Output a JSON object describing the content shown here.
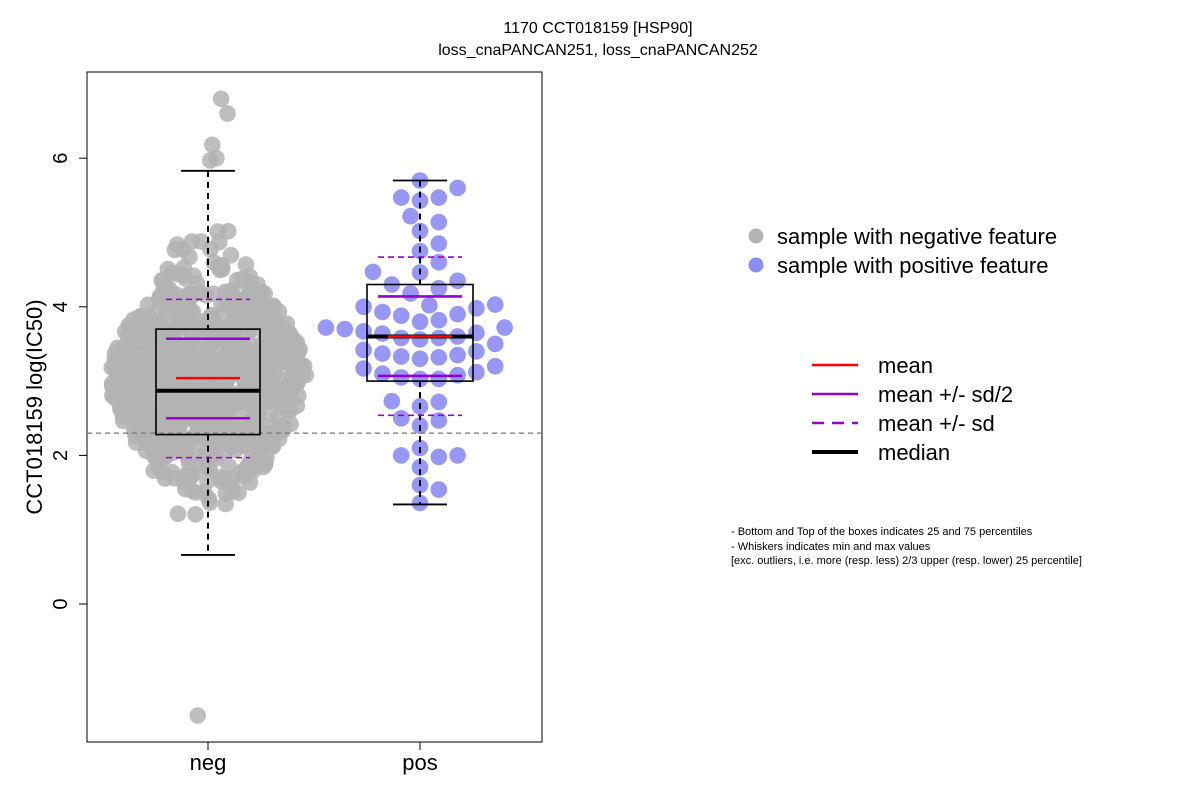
{
  "chart_data": {
    "type": "scatter",
    "subtype": "beeswarm-boxplot",
    "title": "1170 CCT018159 [HSP90]",
    "subtitle": "loss_cnaPANCAN251, loss_cnaPANCAN252",
    "ylabel": "CCT018159 log(IC50)",
    "xlabel": "",
    "categories": [
      "neg",
      "pos"
    ],
    "ylim": [
      -1.85,
      7.1
    ],
    "yticks": [
      0,
      2,
      4,
      6
    ],
    "reference_line": 2.3,
    "grid": false,
    "legend_position": "right",
    "groups": [
      {
        "name": "neg",
        "color": "#b3b3b3",
        "box": {
          "whisker_low": 0.66,
          "q1": 2.28,
          "median": 2.87,
          "q3": 3.7,
          "whisker_high": 5.83
        },
        "mean": 3.04,
        "mean_plus_half_sd": 3.57,
        "mean_minus_half_sd": 2.5,
        "mean_plus_sd": 4.1,
        "mean_minus_sd": 1.97,
        "outliers": [
          6.8,
          6.6,
          6.18,
          6.0,
          5.97,
          -1.5
        ],
        "sample_count": 800
      },
      {
        "name": "pos",
        "color": "#8c8cf5",
        "box": {
          "whisker_low": 1.34,
          "q1": 3.0,
          "median": 3.6,
          "q3": 4.3,
          "whisker_high": 5.7
        },
        "mean": 3.6,
        "mean_plus_half_sd": 4.14,
        "mean_minus_half_sd": 3.07,
        "mean_plus_sd": 4.67,
        "mean_minus_sd": 2.54,
        "points": [
          5.7,
          5.6,
          5.47,
          5.47,
          5.43,
          5.22,
          5.14,
          5.02,
          4.85,
          4.75,
          4.6,
          4.47,
          4.46,
          4.35,
          4.3,
          4.25,
          4.18,
          4.03,
          4.02,
          4.0,
          3.98,
          3.93,
          3.9,
          3.88,
          3.82,
          3.8,
          3.72,
          3.72,
          3.7,
          3.67,
          3.65,
          3.64,
          3.6,
          3.58,
          3.58,
          3.56,
          3.5,
          3.42,
          3.4,
          3.37,
          3.35,
          3.33,
          3.32,
          3.3,
          3.2,
          3.17,
          3.12,
          3.1,
          3.08,
          3.05,
          3.03,
          3.03,
          2.73,
          2.72,
          2.66,
          2.5,
          2.47,
          2.4,
          2.1,
          2.0,
          2.0,
          1.98,
          1.84,
          1.6,
          1.54,
          1.36
        ]
      }
    ],
    "legend_points": [
      {
        "label": "sample with negative feature",
        "color": "#b3b3b3"
      },
      {
        "label": "sample with positive feature",
        "color": "#8c8cf5"
      }
    ],
    "legend_lines": [
      {
        "label": "mean",
        "color": "#ff0000",
        "dash": false
      },
      {
        "label": "mean +/- sd/2",
        "color": "#9400d3",
        "dash": false
      },
      {
        "label": "mean +/- sd",
        "color": "#9400d3",
        "dash": true
      },
      {
        "label": "median",
        "color": "#000000",
        "dash": false
      }
    ]
  },
  "notes": [
    "- Bottom and Top of the boxes indicates 25 and 75 percentiles",
    "- Whiskers indicates min and max values",
    "[exc. outliers, i.e. more (resp. less) 2/3 upper (resp. lower) 25 percentile]"
  ]
}
